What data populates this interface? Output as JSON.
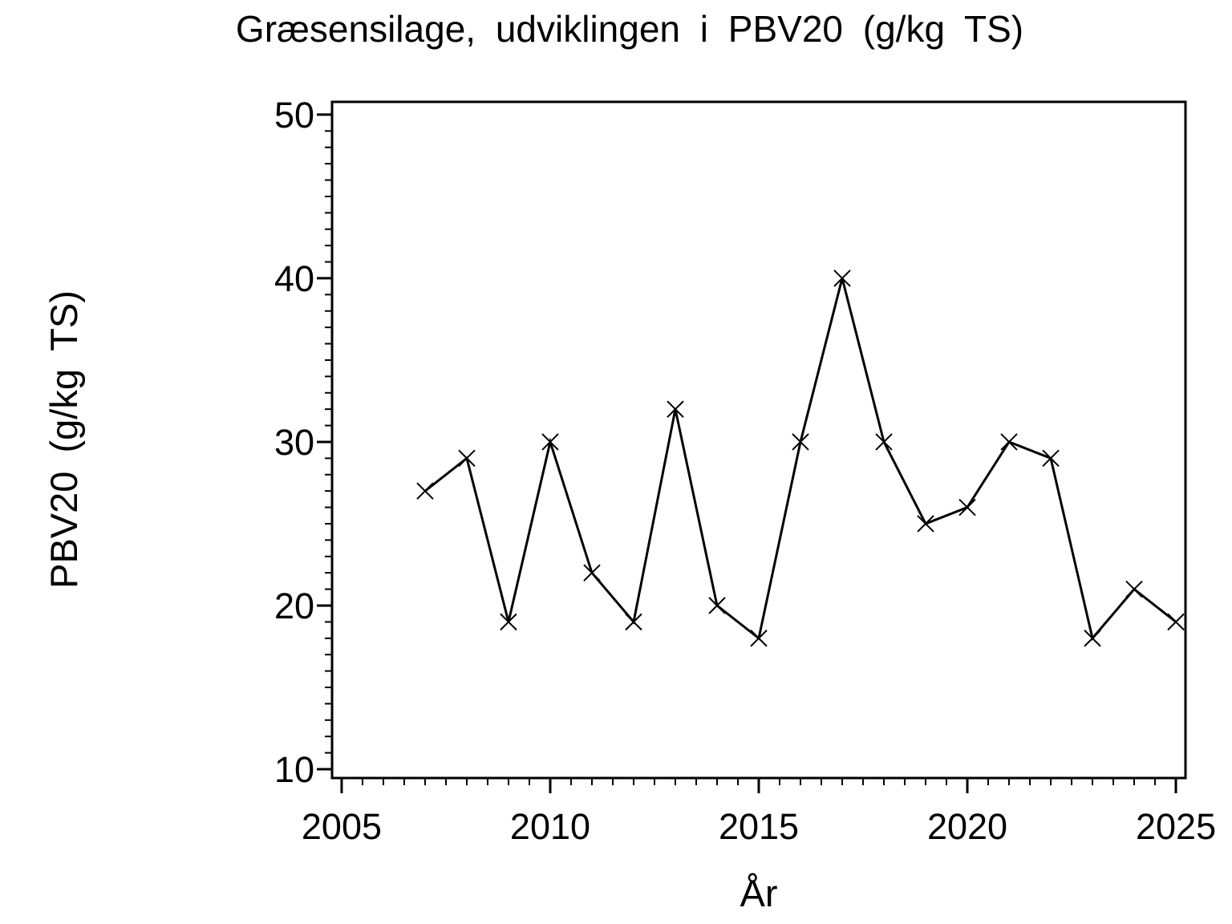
{
  "chart": {
    "title": "Græsensilage, udviklingen i PBV20 (g/kg TS)",
    "x_axis_label": "År",
    "y_axis_label": "PBV20 (g/kg TS)"
  },
  "chart_data": {
    "type": "line",
    "title": "Græsensilage, udviklingen i PBV20 (g/kg TS)",
    "xlabel": "År",
    "ylabel": "PBV20 (g/kg TS)",
    "x": [
      2007,
      2008,
      2009,
      2010,
      2011,
      2012,
      2013,
      2014,
      2015,
      2016,
      2017,
      2018,
      2019,
      2020,
      2021,
      2022,
      2023,
      2024,
      2025
    ],
    "y": [
      27,
      29,
      19,
      30,
      22,
      19,
      32,
      20,
      18,
      30,
      40,
      30,
      25,
      26,
      30,
      29,
      18,
      21,
      19
    ],
    "xlim": [
      2004.77,
      2025.23
    ],
    "ylim": [
      9.46,
      50.78
    ],
    "x_major_ticks": [
      2005,
      2010,
      2015,
      2020,
      2025
    ],
    "y_major_ticks": [
      10,
      20,
      30,
      40,
      50
    ],
    "x_minor_step": 0.5,
    "y_minor_step": 1,
    "marker": "x",
    "line_color": "#000000",
    "background_color": "#ffffff",
    "grid": false,
    "legend": false
  }
}
